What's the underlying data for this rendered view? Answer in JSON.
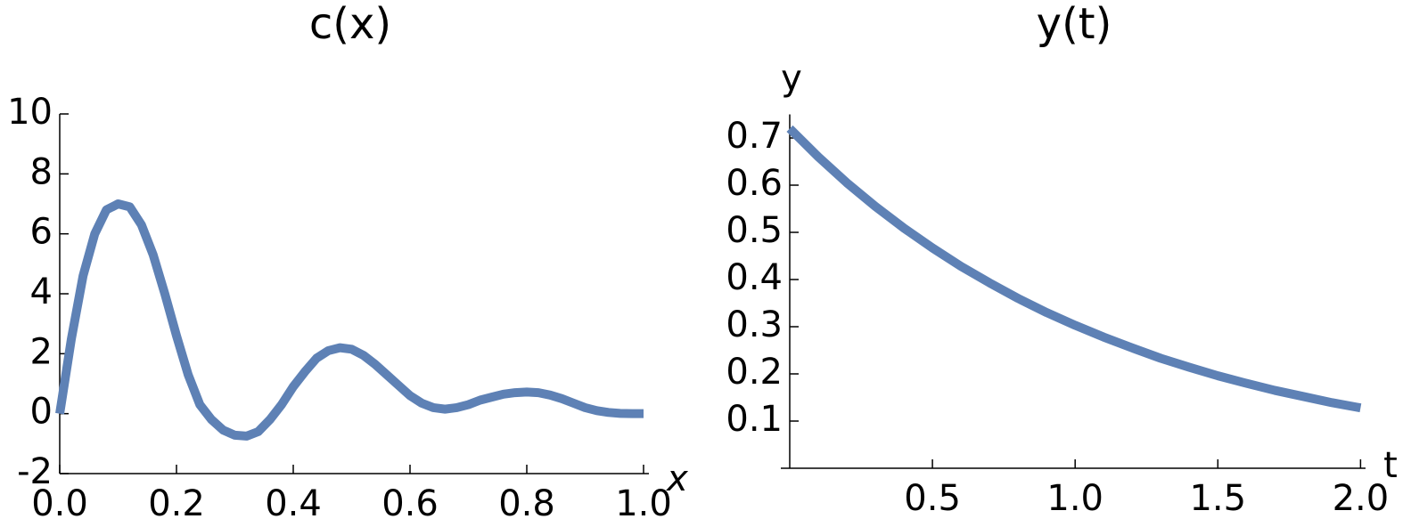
{
  "chart_data": [
    {
      "type": "line",
      "title": "c(x)",
      "x_label": "x",
      "color": "#5e81b5",
      "x": [
        0,
        0.02,
        0.04,
        0.06,
        0.08,
        0.1,
        0.12,
        0.14,
        0.16,
        0.18,
        0.2,
        0.22,
        0.24,
        0.26,
        0.28,
        0.3,
        0.32,
        0.34,
        0.36,
        0.38,
        0.4,
        0.42,
        0.44,
        0.46,
        0.48,
        0.5,
        0.52,
        0.54,
        0.56,
        0.58,
        0.6,
        0.62,
        0.64,
        0.66,
        0.68,
        0.7,
        0.72,
        0.74,
        0.76,
        0.78,
        0.8,
        0.82,
        0.84,
        0.86,
        0.88,
        0.9,
        0.92,
        0.94,
        0.96,
        0.98,
        1
      ],
      "values": [
        0,
        2.5,
        4.6,
        6.0,
        6.8,
        7.0,
        6.9,
        6.3,
        5.3,
        4.0,
        2.6,
        1.3,
        0.3,
        -0.2,
        -0.55,
        -0.72,
        -0.75,
        -0.6,
        -0.2,
        0.3,
        0.9,
        1.4,
        1.85,
        2.1,
        2.2,
        2.15,
        1.95,
        1.65,
        1.3,
        0.95,
        0.6,
        0.35,
        0.2,
        0.15,
        0.2,
        0.3,
        0.45,
        0.55,
        0.65,
        0.7,
        0.72,
        0.7,
        0.62,
        0.5,
        0.35,
        0.2,
        0.1,
        0.04,
        0.01,
        0,
        0
      ],
      "xlim": [
        0,
        1
      ],
      "ylim": [
        -2,
        10
      ],
      "xticks": [
        {
          "value": 0,
          "label": "0.0"
        },
        0.2,
        0.4,
        0.6,
        0.8,
        {
          "value": 1,
          "label": "1.0"
        }
      ],
      "yticks": [
        -2,
        0,
        2,
        4,
        6,
        8,
        10
      ]
    },
    {
      "type": "line",
      "title": "y(t)",
      "x_label": "t",
      "y_label": "y",
      "color": "#5e81b5",
      "x": [
        0,
        0.1,
        0.2,
        0.3,
        0.4,
        0.5,
        0.6,
        0.7,
        0.8,
        0.9,
        1.0,
        1.1,
        1.2,
        1.3,
        1.4,
        1.5,
        1.6,
        1.7,
        1.8,
        1.9,
        2.0
      ],
      "values": [
        0.72,
        0.66,
        0.605,
        0.555,
        0.509,
        0.467,
        0.428,
        0.393,
        0.36,
        0.33,
        0.303,
        0.278,
        0.255,
        0.233,
        0.214,
        0.196,
        0.18,
        0.165,
        0.152,
        0.139,
        0.128
      ],
      "xlim": [
        0,
        2.03
      ],
      "ylim": [
        0,
        0.75
      ],
      "xticks": [
        0.5,
        {
          "value": 1,
          "label": "1.0"
        },
        1.5,
        {
          "value": 2,
          "label": "2.0"
        }
      ],
      "yticks": [
        0.1,
        0.2,
        0.3,
        0.4,
        0.5,
        0.6,
        0.7
      ]
    }
  ]
}
